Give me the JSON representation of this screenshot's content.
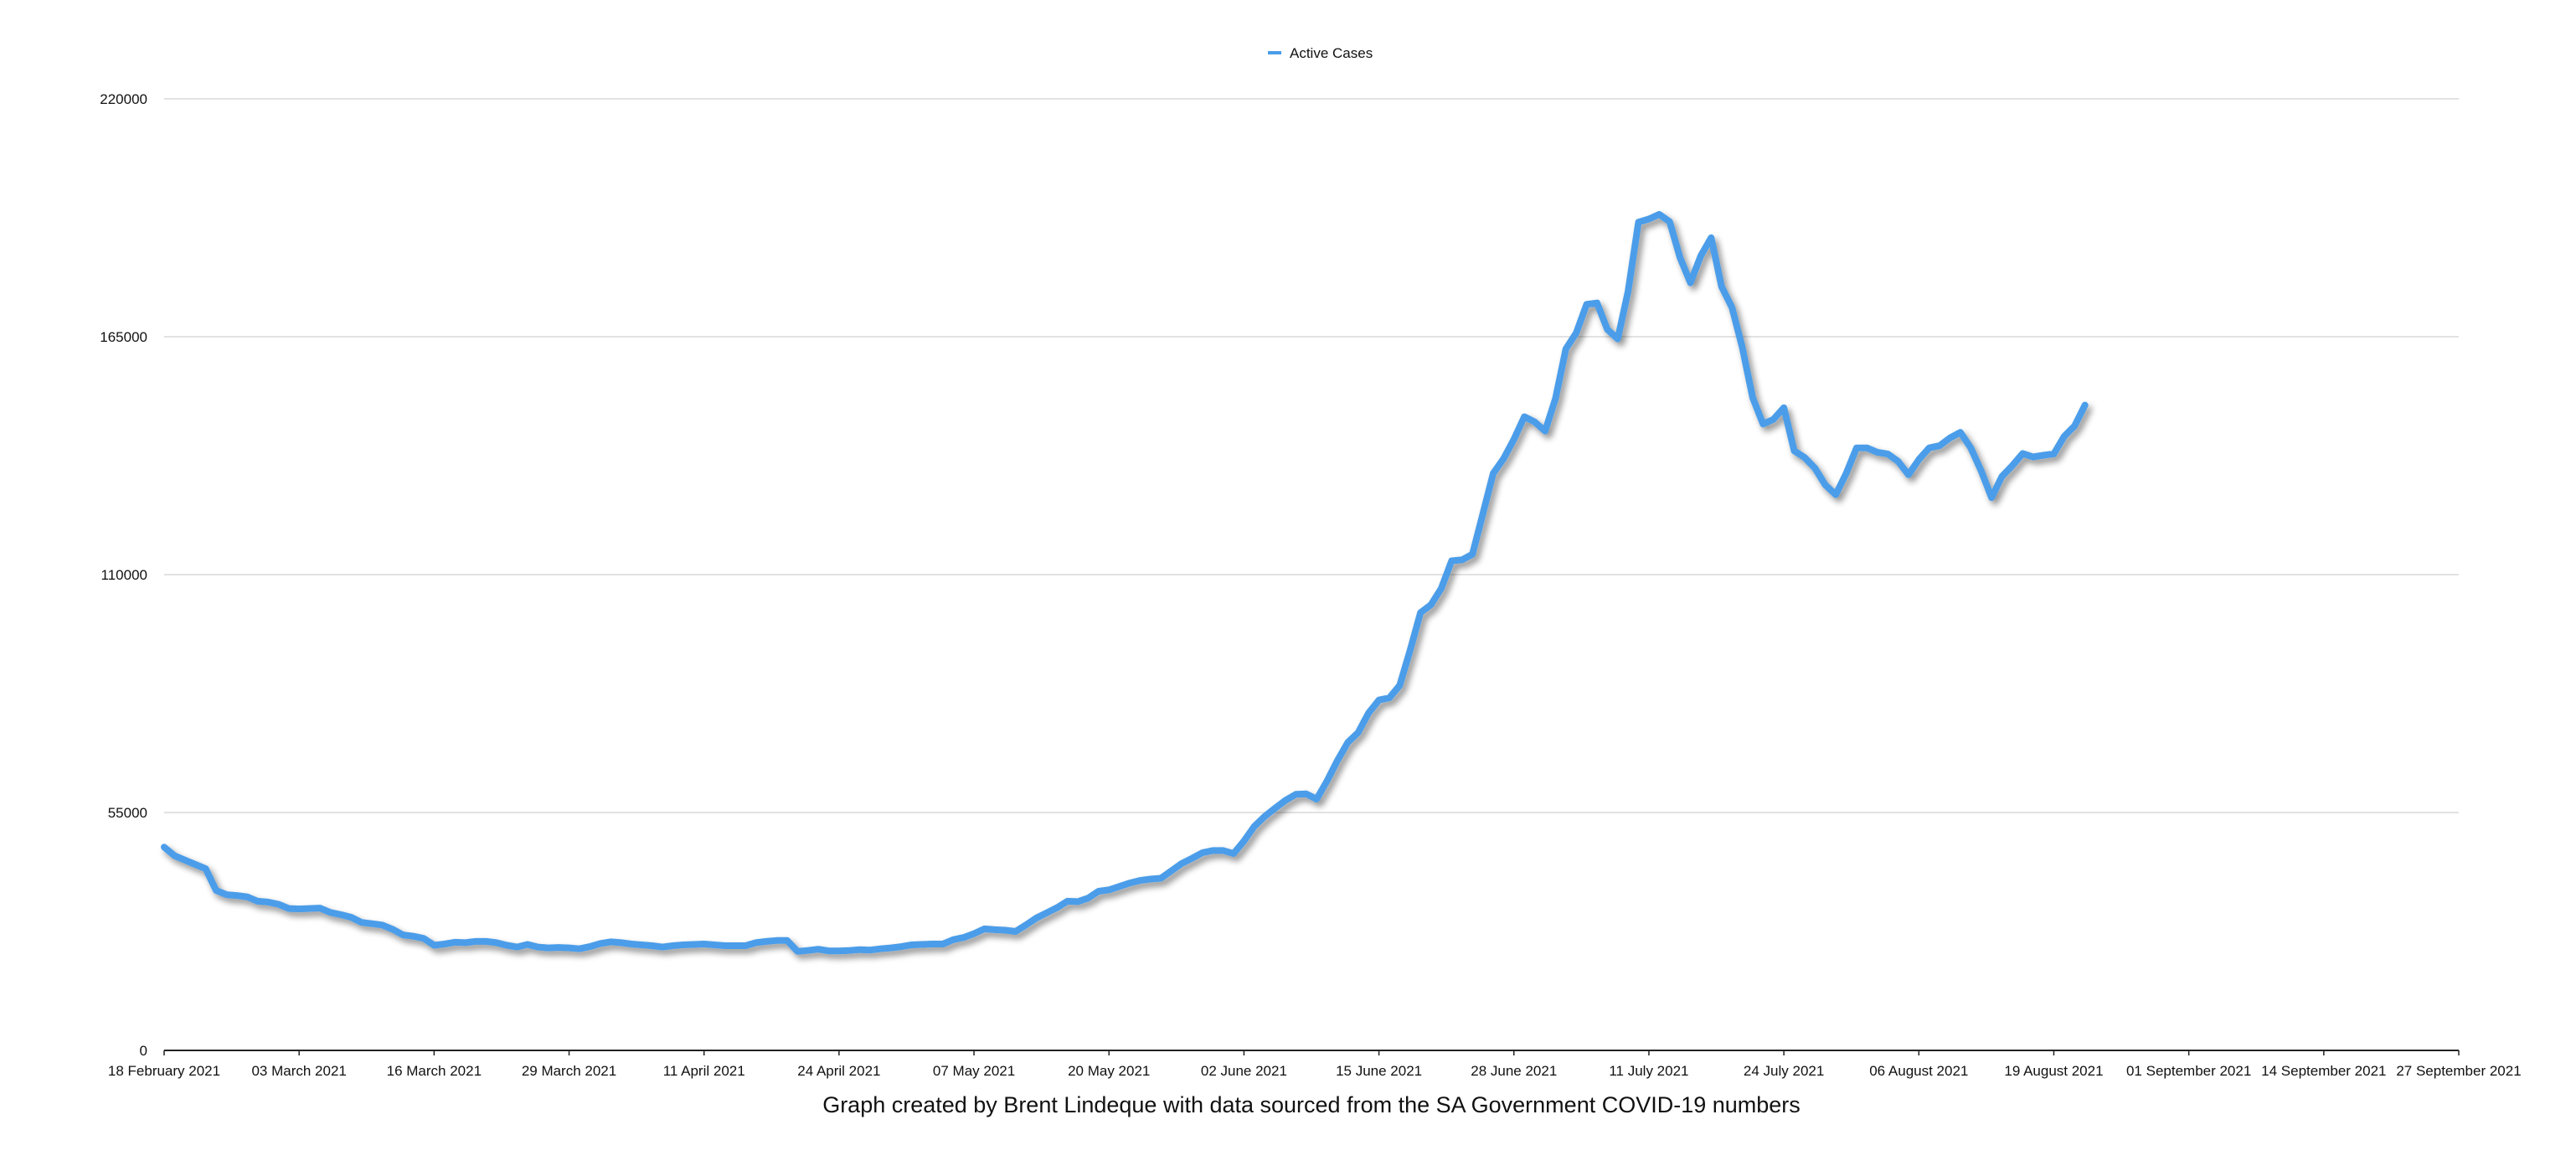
{
  "chart_data": {
    "type": "line",
    "legend": {
      "position": "top-center",
      "entries": [
        "Active Cases"
      ]
    },
    "caption": "Graph created by Brent Lindeque with data sourced from the SA Government COVID-19 numbers",
    "grid": true,
    "ylim": [
      0,
      220000
    ],
    "y_ticks": [
      "0",
      "55000",
      "110000",
      "165000",
      "220000"
    ],
    "x_start": "2021-02-18",
    "x_end": "2021-09-27",
    "x_ticks": [
      {
        "date": "2021-02-18",
        "label": "18 February 2021"
      },
      {
        "date": "2021-03-03",
        "label": "03 March 2021"
      },
      {
        "date": "2021-03-16",
        "label": "16 March 2021"
      },
      {
        "date": "2021-03-29",
        "label": "29 March 2021"
      },
      {
        "date": "2021-04-11",
        "label": "11 April 2021"
      },
      {
        "date": "2021-04-24",
        "label": "24 April 2021"
      },
      {
        "date": "2021-05-07",
        "label": "07 May 2021"
      },
      {
        "date": "2021-05-20",
        "label": "20 May 2021"
      },
      {
        "date": "2021-06-02",
        "label": "02 June 2021"
      },
      {
        "date": "2021-06-15",
        "label": "15 June 2021"
      },
      {
        "date": "2021-06-28",
        "label": "28 June 2021"
      },
      {
        "date": "2021-07-11",
        "label": "11 July 2021"
      },
      {
        "date": "2021-07-24",
        "label": "24 July 2021"
      },
      {
        "date": "2021-08-06",
        "label": "06 August 2021"
      },
      {
        "date": "2021-08-19",
        "label": "19 August 2021"
      },
      {
        "date": "2021-09-01",
        "label": "01 September 2021"
      },
      {
        "date": "2021-09-14",
        "label": "14 September 2021"
      },
      {
        "date": "2021-09-27",
        "label": "27 September 2021"
      }
    ],
    "series": [
      {
        "name": "Active Cases",
        "color": "#4b9de9",
        "points": [
          [
            "2021-02-18",
            47000
          ],
          [
            "2021-02-19",
            45000
          ],
          [
            "2021-02-20",
            44000
          ],
          [
            "2021-02-21",
            43000
          ],
          [
            "2021-02-22",
            42000
          ],
          [
            "2021-02-23",
            37000
          ],
          [
            "2021-02-24",
            36000
          ],
          [
            "2021-02-25",
            35800
          ],
          [
            "2021-02-26",
            35500
          ],
          [
            "2021-02-27",
            34500
          ],
          [
            "2021-02-28",
            34300
          ],
          [
            "2021-03-01",
            33800
          ],
          [
            "2021-03-02",
            32800
          ],
          [
            "2021-03-03",
            32700
          ],
          [
            "2021-03-04",
            32800
          ],
          [
            "2021-03-05",
            32900
          ],
          [
            "2021-03-06",
            31900
          ],
          [
            "2021-03-07",
            31400
          ],
          [
            "2021-03-08",
            30800
          ],
          [
            "2021-03-09",
            29600
          ],
          [
            "2021-03-10",
            29300
          ],
          [
            "2021-03-11",
            29000
          ],
          [
            "2021-03-12",
            28000
          ],
          [
            "2021-03-13",
            26700
          ],
          [
            "2021-03-14",
            26400
          ],
          [
            "2021-03-15",
            25900
          ],
          [
            "2021-03-16",
            24300
          ],
          [
            "2021-03-17",
            24600
          ],
          [
            "2021-03-18",
            25000
          ],
          [
            "2021-03-19",
            24900
          ],
          [
            "2021-03-20",
            25200
          ],
          [
            "2021-03-21",
            25200
          ],
          [
            "2021-03-22",
            24900
          ],
          [
            "2021-03-23",
            24300
          ],
          [
            "2021-03-24",
            23900
          ],
          [
            "2021-03-25",
            24500
          ],
          [
            "2021-03-26",
            23900
          ],
          [
            "2021-03-27",
            23700
          ],
          [
            "2021-03-28",
            23800
          ],
          [
            "2021-03-29",
            23700
          ],
          [
            "2021-03-30",
            23500
          ],
          [
            "2021-03-31",
            24000
          ],
          [
            "2021-04-01",
            24700
          ],
          [
            "2021-04-02",
            25100
          ],
          [
            "2021-04-03",
            24900
          ],
          [
            "2021-04-04",
            24600
          ],
          [
            "2021-04-05",
            24400
          ],
          [
            "2021-04-06",
            24200
          ],
          [
            "2021-04-07",
            23900
          ],
          [
            "2021-04-08",
            24200
          ],
          [
            "2021-04-09",
            24400
          ],
          [
            "2021-04-10",
            24500
          ],
          [
            "2021-04-11",
            24600
          ],
          [
            "2021-04-12",
            24400
          ],
          [
            "2021-04-13",
            24200
          ],
          [
            "2021-04-14",
            24200
          ],
          [
            "2021-04-15",
            24200
          ],
          [
            "2021-04-16",
            24900
          ],
          [
            "2021-04-17",
            25200
          ],
          [
            "2021-04-18",
            25400
          ],
          [
            "2021-04-19",
            25400
          ],
          [
            "2021-04-20",
            22900
          ],
          [
            "2021-04-21",
            23100
          ],
          [
            "2021-04-22",
            23400
          ],
          [
            "2021-04-23",
            23000
          ],
          [
            "2021-04-24",
            23000
          ],
          [
            "2021-04-25",
            23100
          ],
          [
            "2021-04-26",
            23300
          ],
          [
            "2021-04-27",
            23200
          ],
          [
            "2021-04-28",
            23500
          ],
          [
            "2021-04-29",
            23700
          ],
          [
            "2021-04-30",
            24000
          ],
          [
            "2021-05-01",
            24400
          ],
          [
            "2021-05-02",
            24500
          ],
          [
            "2021-05-03",
            24600
          ],
          [
            "2021-05-04",
            24600
          ],
          [
            "2021-05-05",
            25600
          ],
          [
            "2021-05-06",
            26100
          ],
          [
            "2021-05-07",
            27000
          ],
          [
            "2021-05-08",
            28100
          ],
          [
            "2021-05-09",
            27900
          ],
          [
            "2021-05-10",
            27800
          ],
          [
            "2021-05-11",
            27500
          ],
          [
            "2021-05-12",
            29000
          ],
          [
            "2021-05-13",
            30600
          ],
          [
            "2021-05-14",
            31800
          ],
          [
            "2021-05-15",
            33000
          ],
          [
            "2021-05-16",
            34500
          ],
          [
            "2021-05-17",
            34400
          ],
          [
            "2021-05-18",
            35200
          ],
          [
            "2021-05-19",
            36800
          ],
          [
            "2021-05-20",
            37100
          ],
          [
            "2021-05-21",
            37900
          ],
          [
            "2021-05-22",
            38700
          ],
          [
            "2021-05-23",
            39300
          ],
          [
            "2021-05-24",
            39600
          ],
          [
            "2021-05-25",
            39800
          ],
          [
            "2021-05-26",
            41500
          ],
          [
            "2021-05-27",
            43200
          ],
          [
            "2021-05-28",
            44400
          ],
          [
            "2021-05-29",
            45700
          ],
          [
            "2021-05-30",
            46200
          ],
          [
            "2021-05-31",
            46200
          ],
          [
            "2021-06-01",
            45500
          ],
          [
            "2021-06-02",
            48400
          ],
          [
            "2021-06-03",
            51800
          ],
          [
            "2021-06-04",
            54100
          ],
          [
            "2021-06-05",
            56000
          ],
          [
            "2021-06-06",
            57800
          ],
          [
            "2021-06-07",
            59200
          ],
          [
            "2021-06-08",
            59300
          ],
          [
            "2021-06-09",
            58100
          ],
          [
            "2021-06-10",
            62300
          ],
          [
            "2021-06-11",
            67000
          ],
          [
            "2021-06-12",
            71200
          ],
          [
            "2021-06-13",
            73500
          ],
          [
            "2021-06-14",
            78000
          ],
          [
            "2021-06-15",
            81000
          ],
          [
            "2021-06-16",
            81500
          ],
          [
            "2021-06-17",
            84400
          ],
          [
            "2021-06-18",
            92500
          ],
          [
            "2021-06-19",
            101200
          ],
          [
            "2021-06-20",
            103000
          ],
          [
            "2021-06-21",
            106800
          ],
          [
            "2021-06-22",
            113200
          ],
          [
            "2021-06-23",
            113400
          ],
          [
            "2021-06-24",
            114700
          ],
          [
            "2021-06-25",
            124000
          ],
          [
            "2021-06-26",
            133400
          ],
          [
            "2021-06-27",
            136800
          ],
          [
            "2021-06-28",
            141300
          ],
          [
            "2021-06-29",
            146500
          ],
          [
            "2021-06-30",
            145300
          ],
          [
            "2021-07-01",
            143200
          ],
          [
            "2021-07-02",
            150700
          ],
          [
            "2021-07-03",
            162200
          ],
          [
            "2021-07-04",
            165900
          ],
          [
            "2021-07-05",
            172500
          ],
          [
            "2021-07-06",
            172800
          ],
          [
            "2021-07-07",
            166700
          ],
          [
            "2021-07-08",
            164500
          ],
          [
            "2021-07-09",
            175500
          ],
          [
            "2021-07-10",
            191500
          ],
          [
            "2021-07-11",
            192200
          ],
          [
            "2021-07-12",
            193300
          ],
          [
            "2021-07-13",
            191600
          ],
          [
            "2021-07-14",
            183300
          ],
          [
            "2021-07-15",
            177500
          ],
          [
            "2021-07-16",
            183700
          ],
          [
            "2021-07-17",
            187900
          ],
          [
            "2021-07-18",
            176600
          ],
          [
            "2021-07-19",
            171800
          ],
          [
            "2021-07-20",
            162500
          ],
          [
            "2021-07-21",
            150900
          ],
          [
            "2021-07-22",
            144800
          ],
          [
            "2021-07-23",
            145900
          ],
          [
            "2021-07-24",
            148600
          ],
          [
            "2021-07-25",
            138600
          ],
          [
            "2021-07-26",
            137100
          ],
          [
            "2021-07-27",
            134600
          ],
          [
            "2021-07-28",
            130700
          ],
          [
            "2021-07-29",
            128500
          ],
          [
            "2021-07-30",
            133400
          ],
          [
            "2021-07-31",
            139300
          ],
          [
            "2021-08-01",
            139300
          ],
          [
            "2021-08-02",
            138300
          ],
          [
            "2021-08-03",
            137900
          ],
          [
            "2021-08-04",
            136200
          ],
          [
            "2021-08-05",
            133100
          ],
          [
            "2021-08-06",
            136600
          ],
          [
            "2021-08-07",
            139300
          ],
          [
            "2021-08-08",
            139800
          ],
          [
            "2021-08-09",
            141600
          ],
          [
            "2021-08-10",
            142900
          ],
          [
            "2021-08-11",
            139300
          ],
          [
            "2021-08-12",
            134000
          ],
          [
            "2021-08-13",
            127800
          ],
          [
            "2021-08-14",
            132700
          ],
          [
            "2021-08-15",
            135200
          ],
          [
            "2021-08-16",
            138000
          ],
          [
            "2021-08-17",
            137200
          ],
          [
            "2021-08-18",
            137600
          ],
          [
            "2021-08-19",
            137900
          ],
          [
            "2021-08-20",
            142000
          ],
          [
            "2021-08-21",
            144400
          ],
          [
            "2021-08-22",
            149200
          ]
        ]
      }
    ]
  }
}
